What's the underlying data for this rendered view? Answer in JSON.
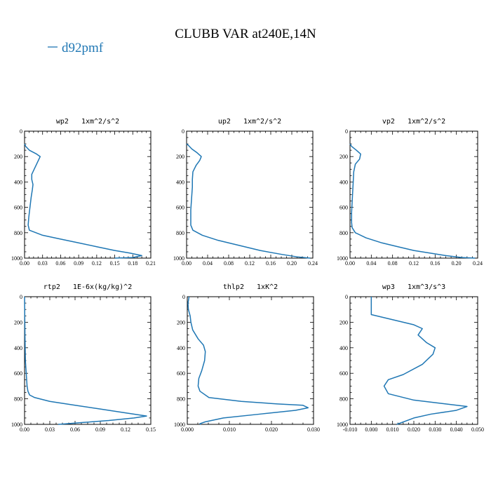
{
  "figure": {
    "title": "CLUBB VAR at240E,14N",
    "legend": {
      "label": "d92pmf",
      "color": "#1f77b4"
    }
  },
  "chart_data": [
    {
      "type": "line",
      "title": "wp2   1xm^2/s^2",
      "xlim": [
        0.0,
        0.21
      ],
      "ylim": [
        0,
        1000
      ],
      "y_inverted": true,
      "xticks": [
        "0.00",
        "0.03",
        "0.06",
        "0.09",
        "0.12",
        "0.15",
        "0.18",
        "0.21"
      ],
      "yticks": [
        "0",
        "200",
        "400",
        "600",
        "800",
        "1000"
      ],
      "series": [
        {
          "name": "d92pmf",
          "color": "#1f77b4",
          "x": [
            0.0,
            0.002,
            0.008,
            0.02,
            0.026,
            0.022,
            0.016,
            0.012,
            0.012,
            0.014,
            0.013,
            0.011,
            0.009,
            0.007,
            0.006,
            0.008,
            0.03,
            0.06,
            0.09,
            0.12,
            0.15,
            0.175,
            0.195,
            0.18,
            0.15
          ],
          "y": [
            100,
            120,
            150,
            180,
            200,
            240,
            300,
            340,
            380,
            420,
            460,
            520,
            600,
            680,
            740,
            780,
            820,
            850,
            880,
            910,
            940,
            960,
            980,
            995,
            1000
          ]
        }
      ]
    },
    {
      "type": "line",
      "title": "up2   1xm^2/s^2",
      "xlim": [
        0.0,
        0.24
      ],
      "ylim": [
        0,
        1000
      ],
      "y_inverted": true,
      "xticks": [
        "0.00",
        "0.04",
        "0.08",
        "0.12",
        "0.16",
        "0.20",
        "0.24"
      ],
      "yticks": [
        "0",
        "200",
        "400",
        "600",
        "800",
        "1000"
      ],
      "series": [
        {
          "name": "d92pmf",
          "color": "#1f77b4",
          "x": [
            0.0,
            0.003,
            0.01,
            0.02,
            0.028,
            0.025,
            0.018,
            0.012,
            0.011,
            0.011,
            0.01,
            0.009,
            0.008,
            0.008,
            0.008,
            0.012,
            0.03,
            0.06,
            0.1,
            0.14,
            0.18,
            0.21,
            0.235
          ],
          "y": [
            100,
            110,
            140,
            170,
            200,
            230,
            270,
            320,
            380,
            440,
            500,
            560,
            620,
            680,
            740,
            780,
            820,
            860,
            900,
            940,
            970,
            990,
            1000
          ]
        }
      ]
    },
    {
      "type": "line",
      "title": "vp2   1xm^2/s^2",
      "xlim": [
        0.0,
        0.24
      ],
      "ylim": [
        0,
        1000
      ],
      "y_inverted": true,
      "xticks": [
        "0.00",
        "0.04",
        "0.08",
        "0.12",
        "0.16",
        "0.20",
        "0.24"
      ],
      "yticks": [
        "0",
        "200",
        "400",
        "600",
        "800",
        "1000"
      ],
      "series": [
        {
          "name": "d92pmf",
          "color": "#1f77b4",
          "x": [
            0.0,
            0.003,
            0.012,
            0.02,
            0.018,
            0.01,
            0.007,
            0.006,
            0.005,
            0.004,
            0.003,
            0.003,
            0.004,
            0.01,
            0.03,
            0.06,
            0.09,
            0.12,
            0.15,
            0.18,
            0.21,
            0.235
          ],
          "y": [
            100,
            120,
            150,
            180,
            220,
            260,
            320,
            400,
            480,
            560,
            640,
            720,
            760,
            800,
            840,
            880,
            910,
            940,
            960,
            980,
            995,
            1000
          ]
        }
      ]
    },
    {
      "type": "line",
      "title": "rtp2   1E-6x(kg/kg)^2",
      "xlim": [
        0.0,
        0.15
      ],
      "ylim": [
        0,
        1000
      ],
      "y_inverted": true,
      "xticks": [
        "0.00",
        "0.03",
        "0.06",
        "0.09",
        "0.12",
        "0.15"
      ],
      "yticks": [
        "0",
        "200",
        "400",
        "600",
        "800",
        "1000"
      ],
      "series": [
        {
          "name": "d92pmf",
          "color": "#1f77b4",
          "x": [
            0.0,
            0.0005,
            0.001,
            0.002,
            0.003,
            0.004,
            0.006,
            0.012,
            0.03,
            0.06,
            0.09,
            0.12,
            0.145,
            0.13,
            0.1,
            0.07,
            0.05,
            0.04
          ],
          "y": [
            0,
            300,
            500,
            600,
            700,
            740,
            770,
            790,
            820,
            850,
            880,
            910,
            935,
            950,
            970,
            985,
            995,
            1000
          ]
        }
      ]
    },
    {
      "type": "line",
      "title": "thlp2   1xK^2",
      "xlim": [
        0.0,
        0.035
      ],
      "ylim": [
        0,
        1000
      ],
      "y_inverted": true,
      "xticks": [
        "0.000",
        "0.010",
        "0.020",
        "0.030"
      ],
      "yticks": [
        "0",
        "200",
        "400",
        "600",
        "800",
        "1000"
      ],
      "series": [
        {
          "name": "d92pmf",
          "color": "#1f77b4",
          "x": [
            0.0005,
            0.0002,
            0.0003,
            0.0008,
            0.001,
            0.0015,
            0.003,
            0.0045,
            0.005,
            0.0048,
            0.004,
            0.0032,
            0.003,
            0.0035,
            0.006,
            0.015,
            0.025,
            0.032,
            0.0335,
            0.03,
            0.02,
            0.01,
            0.005,
            0.0035,
            0.0038
          ],
          "y": [
            0,
            50,
            100,
            150,
            200,
            260,
            330,
            380,
            430,
            500,
            580,
            640,
            700,
            740,
            790,
            820,
            840,
            850,
            870,
            890,
            920,
            950,
            980,
            995,
            1000
          ]
        }
      ]
    },
    {
      "type": "line",
      "title": "wp3   1xm^3/s^3",
      "xlim": [
        -0.01,
        0.05
      ],
      "ylim": [
        0,
        1000
      ],
      "y_inverted": true,
      "xticks": [
        "-0.010",
        "0.000",
        "0.010",
        "0.020",
        "0.030",
        "0.040",
        "0.050"
      ],
      "yticks": [
        "0",
        "200",
        "400",
        "600",
        "800",
        "1000"
      ],
      "series": [
        {
          "name": "d92pmf",
          "color": "#1f77b4",
          "x": [
            0.0,
            0.0,
            0.01,
            0.02,
            0.024,
            0.022,
            0.026,
            0.03,
            0.029,
            0.024,
            0.015,
            0.008,
            0.006,
            0.008,
            0.02,
            0.035,
            0.045,
            0.04,
            0.028,
            0.02,
            0.012
          ],
          "y": [
            0,
            140,
            180,
            220,
            250,
            300,
            360,
            400,
            450,
            530,
            610,
            650,
            700,
            760,
            810,
            840,
            860,
            890,
            920,
            950,
            1000
          ]
        }
      ]
    }
  ]
}
